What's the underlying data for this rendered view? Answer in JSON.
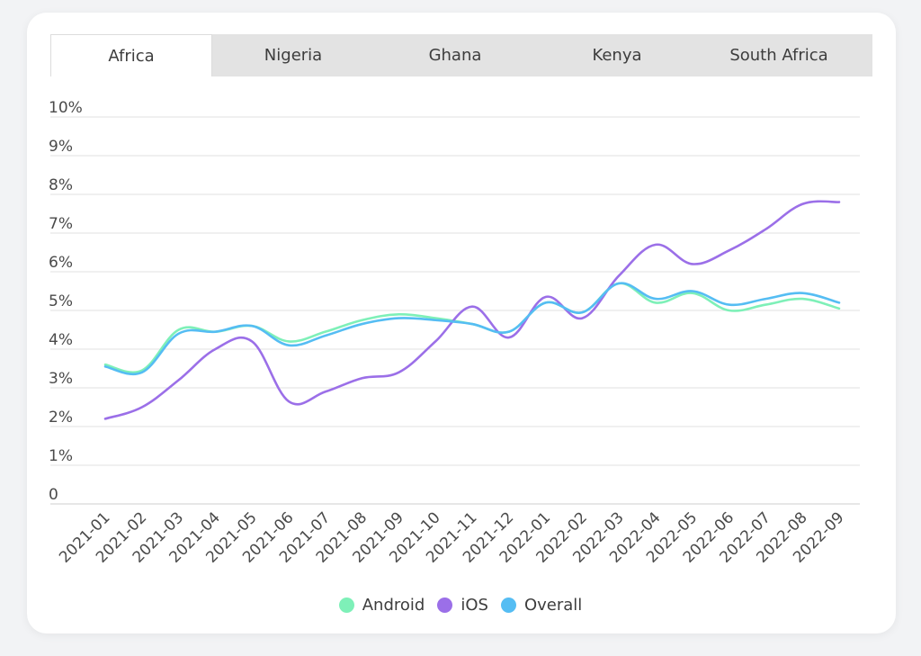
{
  "tabs": [
    "Africa",
    "Nigeria",
    "Ghana",
    "Kenya",
    "South Africa"
  ],
  "active_tab": 0,
  "chart_data": {
    "type": "line",
    "categories": [
      "2021-01",
      "2021-02",
      "2021-03",
      "2021-04",
      "2021-05",
      "2021-06",
      "2021-07",
      "2021-08",
      "2021-09",
      "2021-10",
      "2021-11",
      "2021-12",
      "2022-01",
      "2022-02",
      "2022-03",
      "2022-04",
      "2022-05",
      "2022-06",
      "2022-07",
      "2022-08",
      "2022-09"
    ],
    "ylim": [
      0,
      10
    ],
    "yticks": [
      "0",
      "1%",
      "2%",
      "3%",
      "4%",
      "5%",
      "6%",
      "7%",
      "8%",
      "9%",
      "10%"
    ],
    "grid": true,
    "legend_position": "bottom",
    "series": [
      {
        "name": "Android",
        "color": "#7ef0b8",
        "values": [
          3.6,
          3.45,
          4.5,
          4.45,
          4.6,
          4.2,
          4.45,
          4.75,
          4.9,
          4.8,
          4.65,
          4.45,
          5.2,
          4.95,
          5.7,
          5.2,
          5.45,
          5.0,
          5.15,
          5.3,
          5.05
        ]
      },
      {
        "name": "iOS",
        "color": "#9b6fe8",
        "values": [
          2.2,
          2.5,
          3.2,
          4.0,
          4.2,
          2.65,
          2.9,
          3.25,
          3.4,
          4.2,
          5.1,
          4.3,
          5.35,
          4.8,
          5.9,
          6.7,
          6.2,
          6.55,
          7.1,
          7.75,
          7.8
        ]
      },
      {
        "name": "Overall",
        "color": "#55bdf3",
        "values": [
          3.55,
          3.4,
          4.4,
          4.45,
          4.6,
          4.1,
          4.35,
          4.65,
          4.8,
          4.75,
          4.65,
          4.45,
          5.2,
          4.95,
          5.7,
          5.3,
          5.5,
          5.15,
          5.3,
          5.45,
          5.2
        ]
      }
    ]
  }
}
